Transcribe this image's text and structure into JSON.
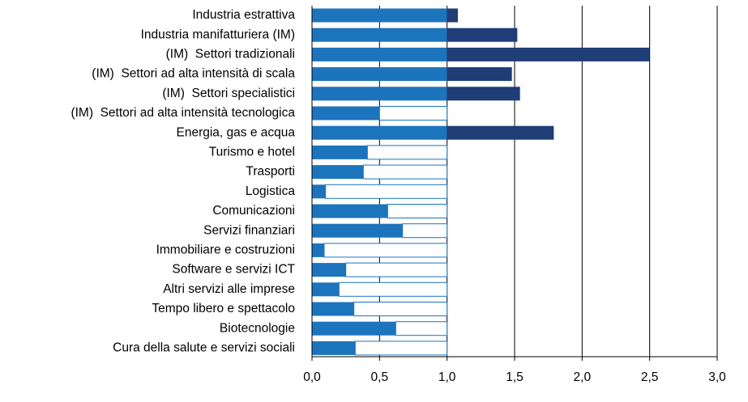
{
  "chart_data": {
    "type": "bar",
    "orientation": "horizontal",
    "categories": [
      "Industria estrattiva",
      "Industria manifatturiera (IM)",
      "(IM)  Settori tradizionali",
      "(IM)  Settori ad alta intensità di scala",
      "(IM)  Settori specialistici",
      "(IM)  Settori ad alta intensità tecnologica",
      "Energia, gas e acqua",
      "Turismo e hotel",
      "Trasporti",
      "Logistica",
      "Comunicazioni",
      "Servizi finanziari",
      "Immobiliare e costruzioni",
      "Software e servizi ICT",
      "Altri servizi alle imprese",
      "Tempo libero e spettacolo",
      "Biotecnologie",
      "Cura della salute e servizi sociali"
    ],
    "values": [
      1.08,
      1.52,
      2.5,
      1.48,
      1.54,
      0.5,
      1.79,
      0.41,
      0.38,
      0.1,
      0.56,
      0.67,
      0.09,
      0.25,
      0.2,
      0.31,
      0.62,
      0.32
    ],
    "baseline": 1,
    "color": "#1c74bd",
    "above_color": "#1f3e78",
    "xlim": [
      0,
      3
    ],
    "xticks": [
      {
        "value": 0,
        "label": "0,0"
      },
      {
        "value": 0.5,
        "label": "0,5"
      },
      {
        "value": 1,
        "label": "1,0"
      },
      {
        "value": 1.5,
        "label": "1,5"
      },
      {
        "value": 2,
        "label": "2,0"
      },
      {
        "value": 2.5,
        "label": "2,5"
      },
      {
        "value": 3,
        "label": "3,0"
      }
    ],
    "grid": true
  }
}
